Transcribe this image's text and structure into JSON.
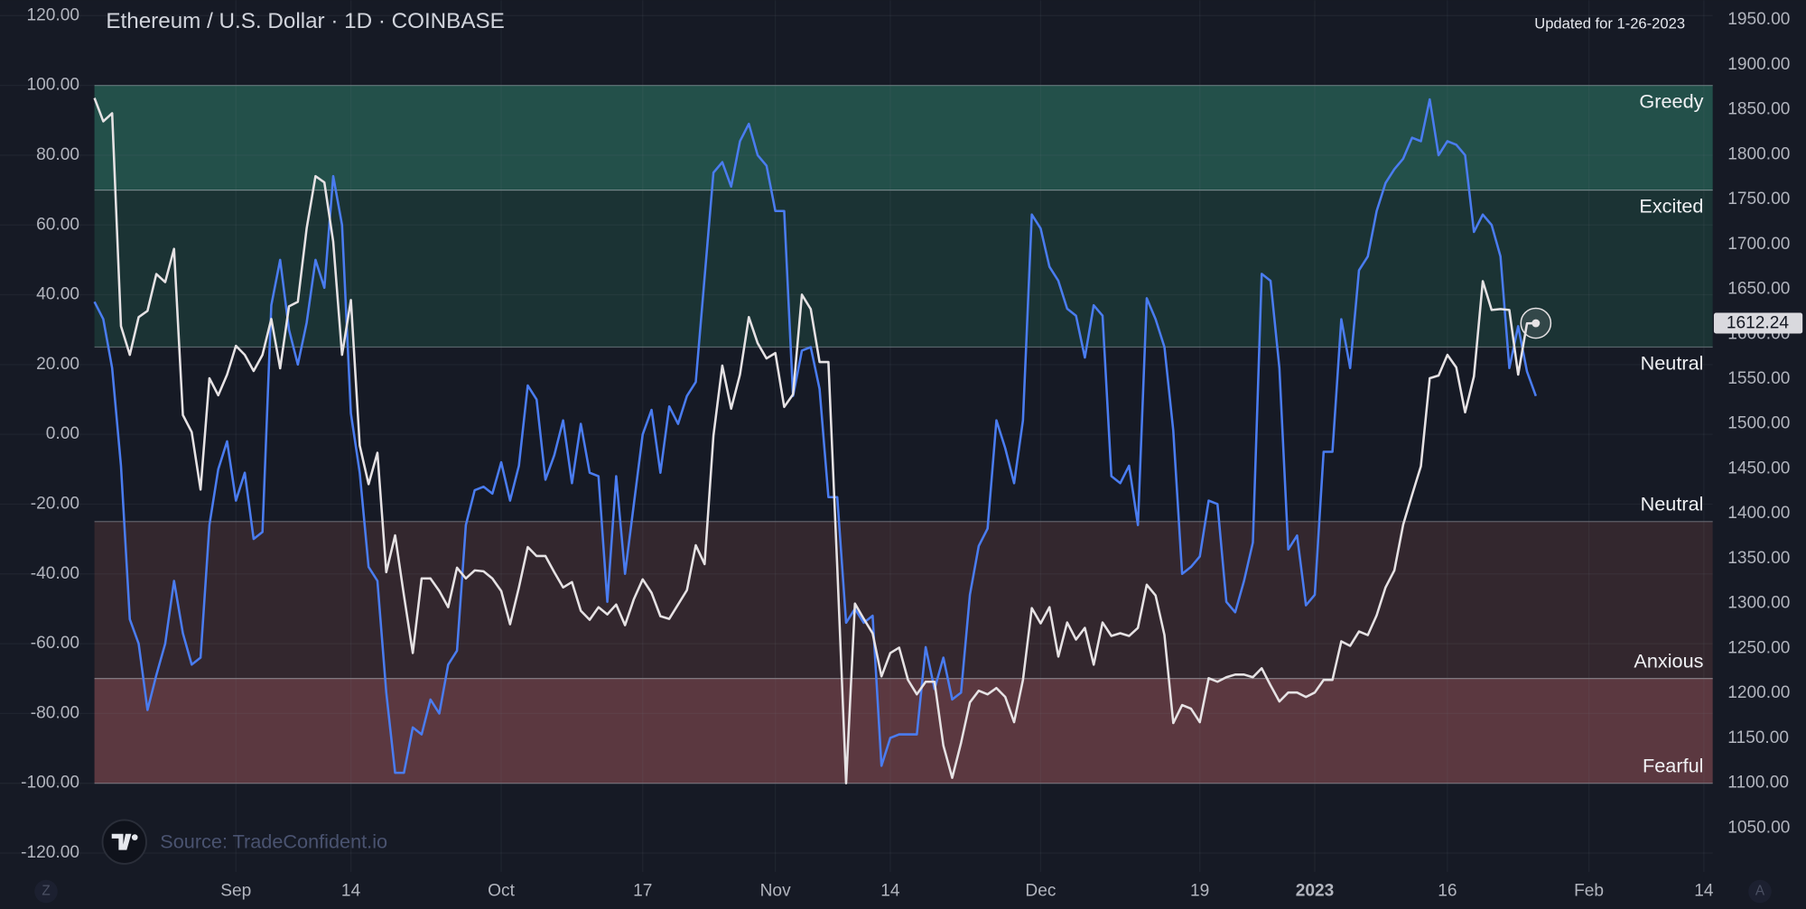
{
  "chart_data": {
    "type": "line",
    "title": "Ethereum / U.S. Dollar · 1D · COINBASE",
    "annotation": "Updated for 1-26-2023",
    "source": "Source: TradeConfident.io",
    "grid": true,
    "x": [
      "2022-08-16",
      "2022-08-17",
      "2022-08-18",
      "2022-08-19",
      "2022-08-20",
      "2022-08-21",
      "2022-08-22",
      "2022-08-23",
      "2022-08-24",
      "2022-08-25",
      "2022-08-26",
      "2022-08-27",
      "2022-08-28",
      "2022-08-29",
      "2022-08-30",
      "2022-08-31",
      "2022-09-01",
      "2022-09-02",
      "2022-09-03",
      "2022-09-04",
      "2022-09-05",
      "2022-09-06",
      "2022-09-07",
      "2022-09-08",
      "2022-09-09",
      "2022-09-10",
      "2022-09-11",
      "2022-09-12",
      "2022-09-13",
      "2022-09-14",
      "2022-09-15",
      "2022-09-16",
      "2022-09-17",
      "2022-09-18",
      "2022-09-19",
      "2022-09-20",
      "2022-09-21",
      "2022-09-22",
      "2022-09-23",
      "2022-09-24",
      "2022-09-25",
      "2022-09-26",
      "2022-09-27",
      "2022-09-28",
      "2022-09-29",
      "2022-09-30",
      "2022-10-01",
      "2022-10-02",
      "2022-10-03",
      "2022-10-04",
      "2022-10-05",
      "2022-10-06",
      "2022-10-07",
      "2022-10-08",
      "2022-10-09",
      "2022-10-10",
      "2022-10-11",
      "2022-10-12",
      "2022-10-13",
      "2022-10-14",
      "2022-10-15",
      "2022-10-16",
      "2022-10-17",
      "2022-10-18",
      "2022-10-19",
      "2022-10-20",
      "2022-10-21",
      "2022-10-22",
      "2022-10-23",
      "2022-10-24",
      "2022-10-25",
      "2022-10-26",
      "2022-10-27",
      "2022-10-28",
      "2022-10-29",
      "2022-10-30",
      "2022-10-31",
      "2022-11-01",
      "2022-11-02",
      "2022-11-03",
      "2022-11-04",
      "2022-11-05",
      "2022-11-06",
      "2022-11-07",
      "2022-11-08",
      "2022-11-09",
      "2022-11-10",
      "2022-11-11",
      "2022-11-12",
      "2022-11-13",
      "2022-11-14",
      "2022-11-15",
      "2022-11-16",
      "2022-11-17",
      "2022-11-18",
      "2022-11-19",
      "2022-11-20",
      "2022-11-21",
      "2022-11-22",
      "2022-11-23",
      "2022-11-24",
      "2022-11-25",
      "2022-11-26",
      "2022-11-27",
      "2022-11-28",
      "2022-11-29",
      "2022-11-30",
      "2022-12-01",
      "2022-12-02",
      "2022-12-03",
      "2022-12-04",
      "2022-12-05",
      "2022-12-06",
      "2022-12-07",
      "2022-12-08",
      "2022-12-09",
      "2022-12-10",
      "2022-12-11",
      "2022-12-12",
      "2022-12-13",
      "2022-12-14",
      "2022-12-15",
      "2022-12-16",
      "2022-12-17",
      "2022-12-18",
      "2022-12-19",
      "2022-12-20",
      "2022-12-21",
      "2022-12-22",
      "2022-12-23",
      "2022-12-24",
      "2022-12-25",
      "2022-12-26",
      "2022-12-27",
      "2022-12-28",
      "2022-12-29",
      "2022-12-30",
      "2022-12-31",
      "2023-01-01",
      "2023-01-02",
      "2023-01-03",
      "2023-01-04",
      "2023-01-05",
      "2023-01-06",
      "2023-01-07",
      "2023-01-08",
      "2023-01-09",
      "2023-01-10",
      "2023-01-11",
      "2023-01-12",
      "2023-01-13",
      "2023-01-14",
      "2023-01-15",
      "2023-01-16",
      "2023-01-17",
      "2023-01-18",
      "2023-01-19",
      "2023-01-20",
      "2023-01-21",
      "2023-01-22",
      "2023-01-23",
      "2023-01-24",
      "2023-01-25",
      "2023-01-26"
    ],
    "xlim": [
      "2022-08-16",
      "2023-02-15"
    ],
    "xticks": [
      {
        "value": "2022-09-01",
        "label": "Sep"
      },
      {
        "value": "2022-09-14",
        "label": "14"
      },
      {
        "value": "2022-10-01",
        "label": "Oct"
      },
      {
        "value": "2022-10-17",
        "label": "17"
      },
      {
        "value": "2022-11-01",
        "label": "Nov"
      },
      {
        "value": "2022-11-14",
        "label": "14"
      },
      {
        "value": "2022-12-01",
        "label": "Dec"
      },
      {
        "value": "2022-12-19",
        "label": "19"
      },
      {
        "value": "2023-01-01",
        "label": "2023"
      },
      {
        "value": "2023-01-16",
        "label": "16"
      },
      {
        "value": "2023-02-01",
        "label": "Feb"
      },
      {
        "value": "2023-02-14",
        "label": "14"
      }
    ],
    "ylim": [
      -125.4,
      124.4
    ],
    "yticks": [
      {
        "value": -120,
        "label": "-120.00"
      },
      {
        "value": -100,
        "label": "-100.00"
      },
      {
        "value": -80,
        "label": "-80.00"
      },
      {
        "value": -60,
        "label": "-60.00"
      },
      {
        "value": -40,
        "label": "-40.00"
      },
      {
        "value": -20,
        "label": "-20.00"
      },
      {
        "value": 0,
        "label": "0.00"
      },
      {
        "value": 20,
        "label": "20.00"
      },
      {
        "value": 40,
        "label": "40.00"
      },
      {
        "value": 60,
        "label": "60.00"
      },
      {
        "value": 80,
        "label": "80.00"
      },
      {
        "value": 100,
        "label": "100.00"
      },
      {
        "value": 120,
        "label": "120.00"
      }
    ],
    "y2lim": [
      1001.3,
      1971.8
    ],
    "y2ticks": [
      {
        "value": 1050,
        "label": "1050.00"
      },
      {
        "value": 1100,
        "label": "1100.00"
      },
      {
        "value": 1150,
        "label": "1150.00"
      },
      {
        "value": 1200,
        "label": "1200.00"
      },
      {
        "value": 1250,
        "label": "1250.00"
      },
      {
        "value": 1300,
        "label": "1300.00"
      },
      {
        "value": 1350,
        "label": "1350.00"
      },
      {
        "value": 1400,
        "label": "1400.00"
      },
      {
        "value": 1450,
        "label": "1450.00"
      },
      {
        "value": 1500,
        "label": "1500.00"
      },
      {
        "value": 1550,
        "label": "1550.00"
      },
      {
        "value": 1600,
        "label": "1600.00"
      },
      {
        "value": 1650,
        "label": "1650.00"
      },
      {
        "value": 1700,
        "label": "1700.00"
      },
      {
        "value": 1750,
        "label": "1750.00"
      },
      {
        "value": 1800,
        "label": "1800.00"
      },
      {
        "value": 1850,
        "label": "1850.00"
      },
      {
        "value": 1900,
        "label": "1900.00"
      },
      {
        "value": 1950,
        "label": "1950.00"
      }
    ],
    "zones": [
      {
        "label": "Greedy",
        "from": 70,
        "to": 100,
        "color": "#23504a"
      },
      {
        "label": "Excited",
        "from": 25,
        "to": 70,
        "color": "#1b3334"
      },
      {
        "label": "Neutral",
        "from": 0,
        "to": 25
      },
      {
        "label": "Neutral",
        "from": -25,
        "to": 0
      },
      {
        "label": "Anxious",
        "from": -70,
        "to": -25,
        "color": "#33272e"
      },
      {
        "label": "Fearful",
        "from": -100,
        "to": -70,
        "color": "#5b3840"
      }
    ],
    "series": [
      {
        "color": "#4a7cf0",
        "values": [
          38,
          33,
          19,
          -9,
          -53,
          -60,
          -79,
          -69,
          -60,
          -42,
          -57,
          -66,
          -64,
          -26,
          -10,
          -2,
          -19,
          -11,
          -30,
          -28,
          37,
          50,
          30,
          20,
          32,
          50,
          42,
          74,
          60,
          6,
          -11,
          -38,
          -42,
          -74,
          -97,
          -97,
          -84,
          -86,
          -76,
          -80,
          -66,
          -62,
          -26,
          -16,
          -15,
          -17,
          -8,
          -19,
          -9,
          14,
          10,
          -13,
          -6,
          4,
          -14,
          3,
          -11,
          -12,
          -48,
          -12,
          -40,
          -20,
          0,
          7,
          -11,
          8,
          3,
          11,
          15,
          45,
          75,
          78,
          71,
          84,
          89,
          80,
          77,
          64,
          64,
          11,
          24,
          25,
          13,
          -18,
          -18,
          -54,
          -50,
          -54,
          -52,
          -95,
          -87,
          -86,
          -86,
          -86,
          -61,
          -73,
          -64,
          -76,
          -74,
          -46,
          -32,
          -27,
          4,
          -4,
          -14,
          4,
          63,
          59,
          48,
          44,
          36,
          34,
          22,
          37,
          34,
          -12,
          -14,
          -9,
          -26,
          39,
          33,
          25,
          1,
          -40,
          -38,
          -35,
          -19,
          -20,
          -48,
          -51,
          -42,
          -31,
          46,
          44,
          19,
          -33,
          -29,
          -49,
          -46,
          -5,
          -5,
          33,
          19,
          47,
          51,
          64,
          72,
          76,
          79,
          85,
          84,
          96,
          80,
          84,
          83,
          80,
          58,
          63,
          60,
          51,
          19,
          31,
          18,
          11
        ]
      },
      {
        "color": "#e6e2e4",
        "axis": "y2",
        "values": [
          1863,
          1837,
          1846,
          1609,
          1577,
          1619,
          1626,
          1667,
          1658,
          1695,
          1510,
          1491,
          1427,
          1551,
          1532,
          1555,
          1587,
          1577,
          1559,
          1577,
          1617,
          1562,
          1631,
          1636,
          1718,
          1776,
          1769,
          1703,
          1577,
          1638,
          1476,
          1433,
          1468,
          1335,
          1376,
          1309,
          1245,
          1328,
          1328,
          1314,
          1296,
          1340,
          1328,
          1337,
          1336,
          1328,
          1314,
          1277,
          1318,
          1363,
          1353,
          1353,
          1335,
          1318,
          1324,
          1292,
          1282,
          1296,
          1288,
          1299,
          1276,
          1305,
          1327,
          1312,
          1286,
          1283,
          1299,
          1315,
          1365,
          1344,
          1487,
          1565,
          1517,
          1555,
          1619,
          1590,
          1573,
          1579,
          1519,
          1533,
          1644,
          1628,
          1569,
          1569,
          1341,
          1100,
          1300,
          1283,
          1267,
          1219,
          1245,
          1251,
          1215,
          1199,
          1213,
          1213,
          1142,
          1106,
          1145,
          1190,
          1203,
          1199,
          1206,
          1196,
          1168,
          1215,
          1295,
          1278,
          1296,
          1241,
          1279,
          1260,
          1273,
          1232,
          1279,
          1264,
          1267,
          1264,
          1273,
          1321,
          1309,
          1265,
          1167,
          1187,
          1183,
          1168,
          1217,
          1213,
          1218,
          1221,
          1221,
          1218,
          1228,
          1209,
          1191,
          1201,
          1201,
          1196,
          1201,
          1215,
          1215,
          1258,
          1253,
          1269,
          1265,
          1287,
          1318,
          1337,
          1388,
          1421,
          1453,
          1551,
          1554,
          1577,
          1563,
          1513,
          1553,
          1659,
          1627,
          1628,
          1627,
          1555,
          1612,
          1612.24
        ]
      }
    ]
  },
  "controls": [
    "Z",
    "A"
  ]
}
